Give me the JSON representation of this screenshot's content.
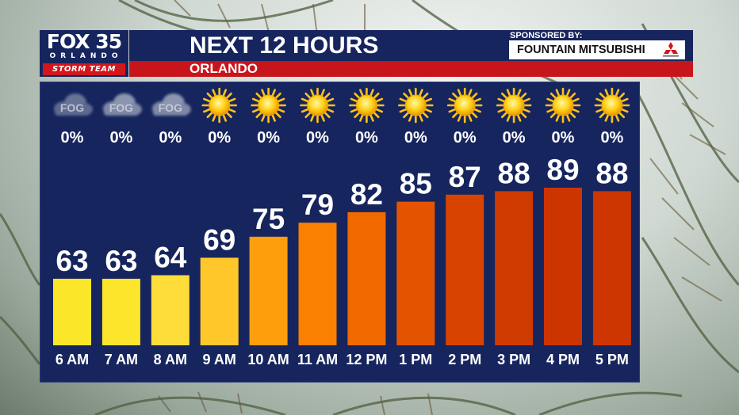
{
  "header": {
    "logo_primary": "FOX 35",
    "logo_city": "ORLANDO",
    "logo_team": "STORM TEAM",
    "title": "NEXT 12 HOURS",
    "location": "ORLANDO",
    "sponsor_label": "SPONSORED BY:",
    "sponsor_name": "FOUNTAIN MITSUBISHI"
  },
  "colors": {
    "panel": "#16255e",
    "title_bar": "#16255e",
    "location_bar": "#c8151b"
  },
  "chart_data": {
    "type": "bar",
    "categories": [
      "6 AM",
      "7 AM",
      "8 AM",
      "9 AM",
      "10 AM",
      "11 AM",
      "12 PM",
      "1 PM",
      "2 PM",
      "3 PM",
      "4 PM",
      "5 PM"
    ],
    "values": [
      63,
      63,
      64,
      69,
      75,
      79,
      82,
      85,
      87,
      88,
      89,
      88
    ],
    "precip_chance": [
      "0%",
      "0%",
      "0%",
      "0%",
      "0%",
      "0%",
      "0%",
      "0%",
      "0%",
      "0%",
      "0%",
      "0%"
    ],
    "conditions": [
      "fog-icon",
      "fog-icon",
      "fog-icon",
      "sun-icon",
      "sun-icon",
      "sun-icon",
      "sun-icon",
      "sun-icon",
      "sun-icon",
      "sun-icon",
      "sun-icon",
      "sun-icon"
    ],
    "fog_label": "FOG",
    "bar_colors": [
      "#fce62a",
      "#fde52c",
      "#fedd3a",
      "#ffc72a",
      "#ff9e0c",
      "#f98000",
      "#f06a00",
      "#e45400",
      "#d94300",
      "#cf3a00",
      "#cc3400",
      "#cd3600"
    ],
    "ylim": [
      44,
      96
    ],
    "grid": false,
    "legend": "none",
    "title": "",
    "xlabel": "",
    "ylabel": ""
  }
}
